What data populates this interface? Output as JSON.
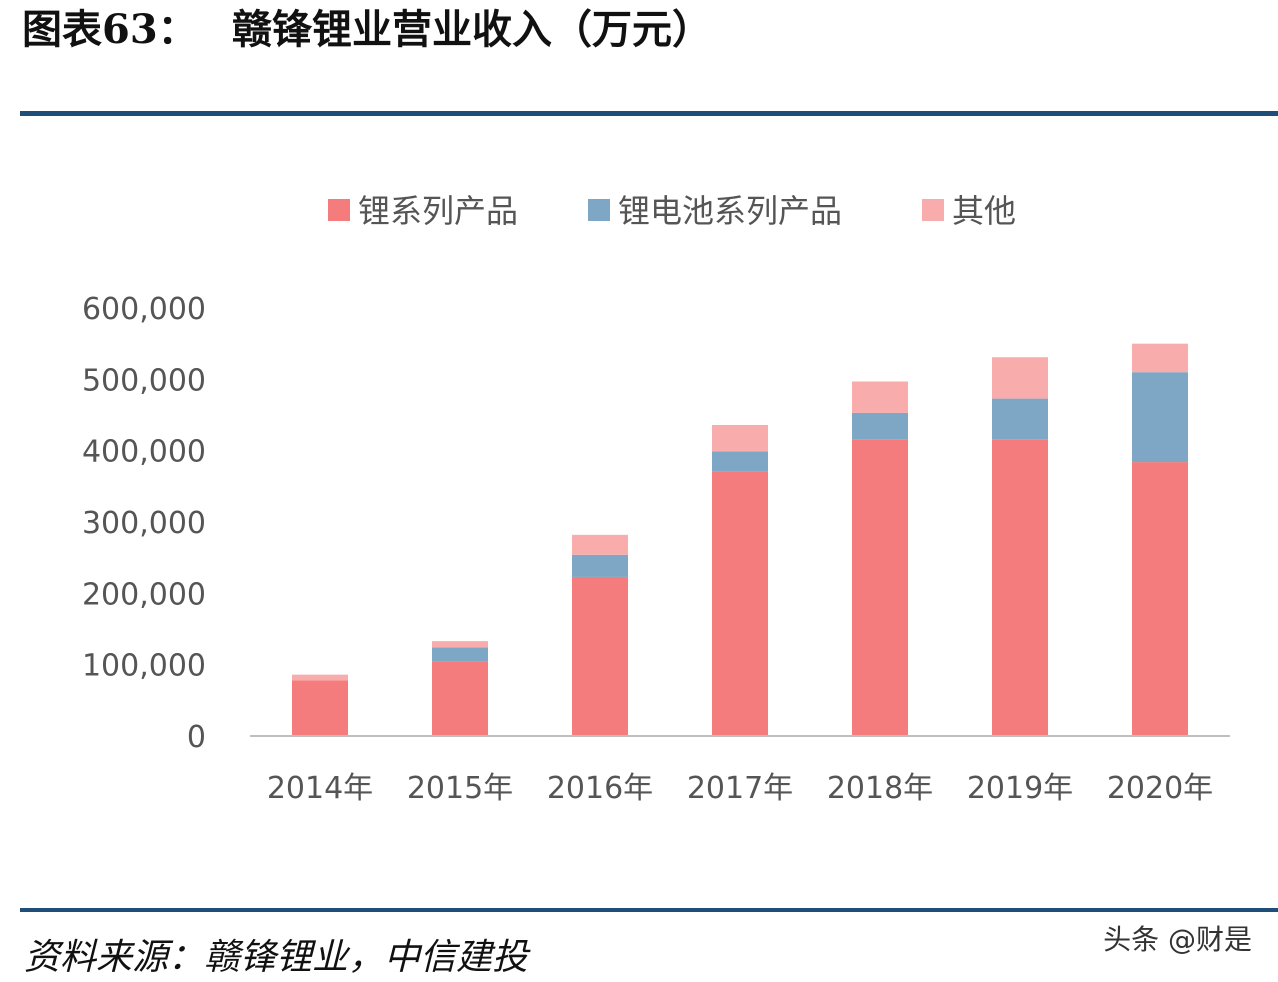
{
  "header": {
    "figure_label": "图表63：",
    "title": "赣锋锂业营业收入（万元）"
  },
  "footer": {
    "source": "资料来源：赣锋锂业，中信建投",
    "watermark": "头条 @财是"
  },
  "colors": {
    "rule": "#1f4e79",
    "lithium_products": "#f47c7c",
    "battery_products": "#7ea7c5",
    "other": "#f9acac",
    "axis_line": "#bfbfbf",
    "text": "#555555"
  },
  "chart_data": {
    "type": "bar",
    "stacked": true,
    "title": "赣锋锂业营业收入（万元）",
    "xlabel": "",
    "ylabel": "",
    "categories": [
      "2014年",
      "2015年",
      "2016年",
      "2017年",
      "2018年",
      "2019年",
      "2020年"
    ],
    "series": [
      {
        "name": "锂系列产品",
        "color": "#f47c7c",
        "values": [
          78000,
          105000,
          223000,
          371000,
          416000,
          416000,
          384000
        ]
      },
      {
        "name": "锂电池系列产品",
        "color": "#7ea7c5",
        "values": [
          0,
          19000,
          31000,
          28000,
          37000,
          57000,
          126000
        ]
      },
      {
        "name": "其他",
        "color": "#f9acac",
        "values": [
          8000,
          9000,
          28000,
          37000,
          44000,
          58000,
          40000
        ]
      }
    ],
    "ylim": [
      0,
      600000
    ],
    "yticks": [
      "0",
      "100,000",
      "200,000",
      "300,000",
      "400,000",
      "500,000",
      "600,000"
    ],
    "ytick_values": [
      0,
      100000,
      200000,
      300000,
      400000,
      500000,
      600000
    ],
    "grid": false,
    "legend_position": "top"
  }
}
